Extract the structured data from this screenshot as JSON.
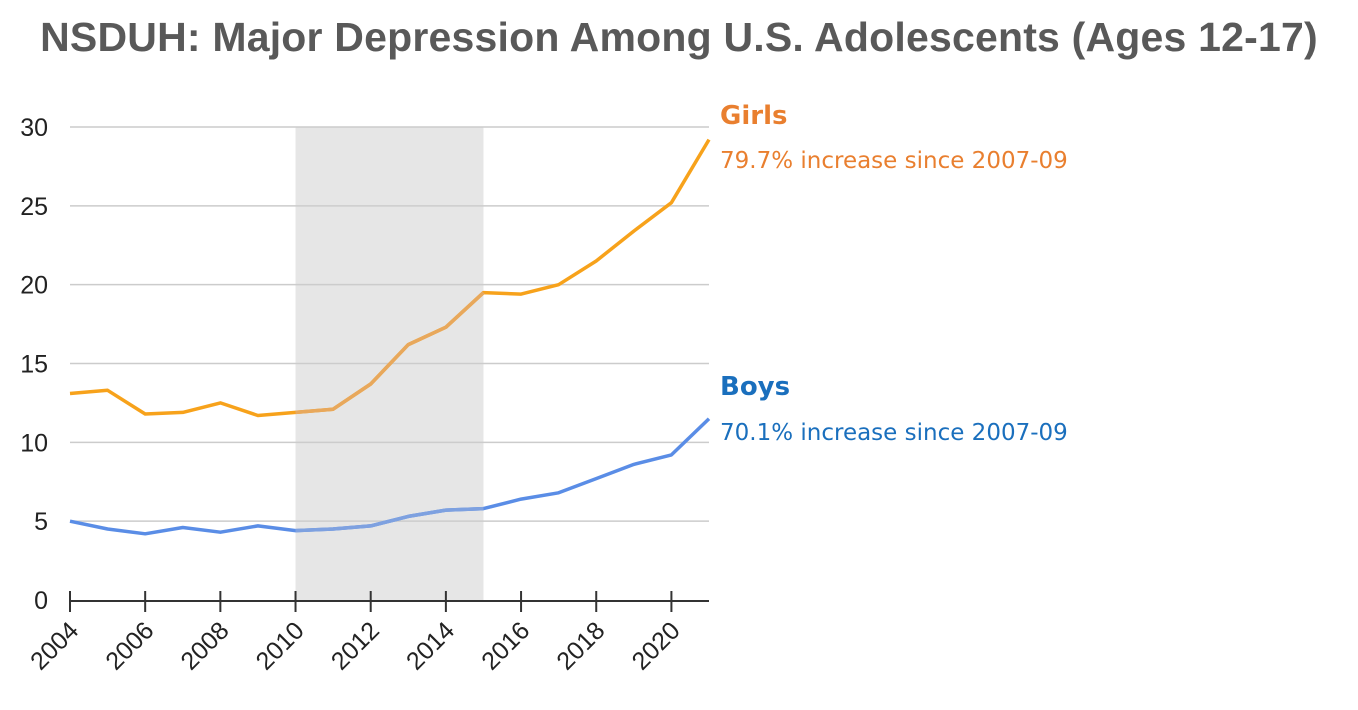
{
  "title": "NSDUH: Major Depression Among U.S. Adolescents (Ages 12-17)",
  "chart_data": {
    "type": "line",
    "title": "NSDUH: Major Depression Among U.S. Adolescents (Ages 12-17)",
    "xlabel": "",
    "ylabel": "",
    "x": [
      2004,
      2005,
      2006,
      2007,
      2008,
      2009,
      2010,
      2011,
      2012,
      2013,
      2014,
      2015,
      2016,
      2017,
      2018,
      2019,
      2020,
      2021
    ],
    "xlim": [
      2004,
      2021
    ],
    "ylim": [
      0,
      30
    ],
    "x_ticks": [
      "2004",
      "2006",
      "2008",
      "2010",
      "2012",
      "2014",
      "2016",
      "2018",
      "2020"
    ],
    "y_ticks": [
      "0",
      "5",
      "10",
      "15",
      "20",
      "25",
      "30"
    ],
    "grid": "horizontal",
    "shaded_region": {
      "x_start": 2010,
      "x_end": 2015,
      "color": "#e6e6e6"
    },
    "series": [
      {
        "name": "Girls",
        "annotation": "79.7% increase since 2007-09",
        "line_color": "#f7a21b",
        "label_color": "#e97f2f",
        "values": [
          13.1,
          13.3,
          11.8,
          11.9,
          12.5,
          11.7,
          11.9,
          12.1,
          13.7,
          16.2,
          17.3,
          19.5,
          19.4,
          20.0,
          21.5,
          23.4,
          25.2,
          29.2
        ]
      },
      {
        "name": "Boys",
        "annotation": "70.1% increase since 2007-09",
        "line_color": "#5a8de6",
        "label_color": "#1a6fbd",
        "values": [
          5.0,
          4.5,
          4.2,
          4.6,
          4.3,
          4.7,
          4.4,
          4.5,
          4.7,
          5.3,
          5.7,
          5.8,
          6.4,
          6.8,
          7.7,
          8.6,
          9.2,
          11.5
        ]
      }
    ]
  }
}
